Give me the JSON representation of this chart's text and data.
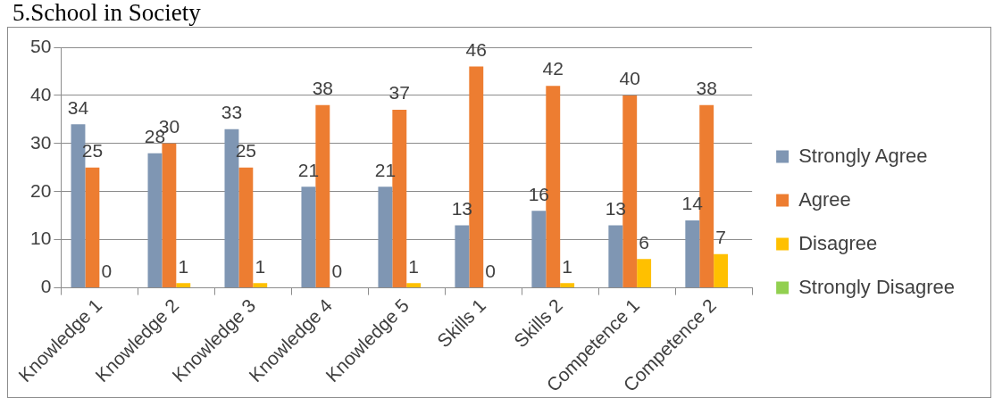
{
  "chart_data": {
    "type": "bar",
    "title": "5.School in Society",
    "categories": [
      "Knowledge 1",
      "Knowledge 2",
      "Knowledge 3",
      "Knowledge 4",
      "Knowledge 5",
      "Skills 1",
      "Skills 2",
      "Competence 1",
      "Competence 2"
    ],
    "series": [
      {
        "name": "Strongly Agree",
        "color": "#7f96b3",
        "values": [
          34,
          28,
          33,
          21,
          21,
          13,
          16,
          13,
          14
        ]
      },
      {
        "name": "Agree",
        "color": "#ed7d31",
        "values": [
          25,
          30,
          25,
          38,
          37,
          46,
          42,
          40,
          38
        ]
      },
      {
        "name": "Disagree",
        "color": "#ffc000",
        "values": [
          0,
          1,
          1,
          0,
          1,
          0,
          1,
          6,
          7
        ]
      },
      {
        "name": "Strongly Disagree",
        "color": "#92d050",
        "values": [
          null,
          null,
          null,
          null,
          null,
          null,
          null,
          null,
          null
        ]
      }
    ],
    "ylim": [
      0,
      50
    ],
    "yticks": [
      0,
      10,
      20,
      30,
      40,
      50
    ],
    "grid": "y",
    "legend": "right",
    "data_labels": true
  }
}
